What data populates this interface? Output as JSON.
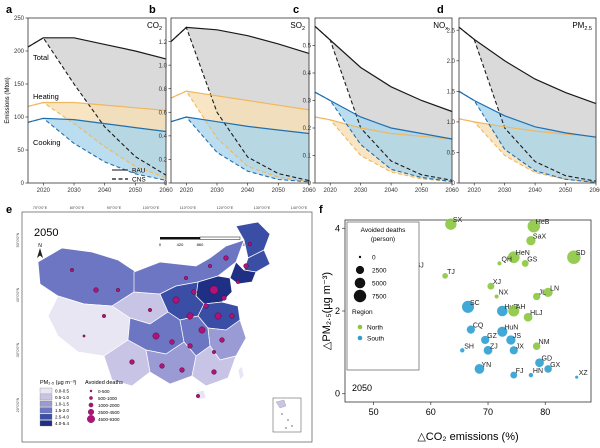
{
  "panels": [
    {
      "letter": "a",
      "species": "CO",
      "sub": "2",
      "ylabel": "Emissions (Mton)",
      "yticks": [
        "0",
        "50",
        "100",
        "150",
        "200",
        "250"
      ]
    },
    {
      "letter": "b",
      "species": "SO",
      "sub": "2",
      "ylabel": "",
      "yticks": [
        "0",
        "0.2",
        "0.4",
        "0.6",
        "0.8",
        "1.0",
        "1.2"
      ]
    },
    {
      "letter": "c",
      "species": "NO",
      "sub": "x",
      "ylabel": "",
      "yticks": [
        "0",
        "0.1",
        "0.2",
        "0.3",
        "0.4",
        "0.5"
      ]
    },
    {
      "letter": "d",
      "species": "PM",
      "sub": "2.5",
      "ylabel": "",
      "yticks": [
        "0",
        "0.5",
        "1.0",
        "1.5",
        "2.0",
        "2.5"
      ]
    }
  ],
  "xticks": [
    "2020",
    "2030",
    "2040",
    "2050",
    "2060"
  ],
  "panel_a_labels": {
    "total": "Total",
    "heating": "Heating",
    "cooking": "Cooking"
  },
  "legend_top": {
    "bau": "BAU",
    "cns": "CNS"
  },
  "colors": {
    "total_fill": "#d4d4d4",
    "heating_fill": "#f6dfb4",
    "cooking_fill": "#a9d4ec",
    "heating_line": "#f0b85e",
    "cooking_line": "#1f6fb0",
    "north": "#8cc63f",
    "south": "#2e9fd0"
  },
  "chart_data": [
    {
      "type": "area",
      "title": "CO2",
      "x": [
        2015,
        2020,
        2030,
        2040,
        2050,
        2060
      ],
      "ylim": [
        0,
        250
      ],
      "series": [
        {
          "name": "Total",
          "bau": [
            206,
            220,
            220,
            210,
            200,
            188
          ],
          "cns": [
            206,
            220,
            150,
            85,
            40,
            12
          ]
        },
        {
          "name": "Heating",
          "bau": [
            116,
            122,
            122,
            118,
            114,
            110
          ],
          "cns": [
            116,
            122,
            90,
            55,
            25,
            8
          ]
        },
        {
          "name": "Cooking",
          "bau": [
            92,
            98,
            96,
            90,
            84,
            78
          ],
          "cns": [
            92,
            98,
            60,
            32,
            14,
            4
          ]
        }
      ]
    },
    {
      "type": "area",
      "title": "SO2",
      "x": [
        2015,
        2020,
        2030,
        2040,
        2050,
        2060
      ],
      "ylim": [
        0,
        1.4
      ],
      "series": [
        {
          "name": "Total",
          "bau": [
            1.2,
            1.32,
            1.3,
            1.25,
            1.18,
            1.1
          ],
          "cns": [
            1.2,
            1.32,
            0.6,
            0.22,
            0.08,
            0.02
          ]
        },
        {
          "name": "Heating",
          "bau": [
            0.72,
            0.78,
            0.74,
            0.7,
            0.66,
            0.62
          ],
          "cns": [
            0.72,
            0.78,
            0.38,
            0.14,
            0.05,
            0.01
          ]
        },
        {
          "name": "Cooking",
          "bau": [
            0.52,
            0.56,
            0.52,
            0.48,
            0.45,
            0.42
          ],
          "cns": [
            0.52,
            0.56,
            0.26,
            0.1,
            0.03,
            0.01
          ]
        }
      ]
    },
    {
      "type": "area",
      "title": "NOx",
      "x": [
        2015,
        2020,
        2030,
        2040,
        2050,
        2060
      ],
      "ylim": [
        0,
        0.6
      ],
      "series": [
        {
          "name": "Total",
          "bau": [
            0.57,
            0.52,
            0.42,
            0.35,
            0.3,
            0.26
          ],
          "cns": [
            0.57,
            0.52,
            0.2,
            0.08,
            0.03,
            0.01
          ]
        },
        {
          "name": "Heating",
          "bau": [
            0.24,
            0.23,
            0.2,
            0.18,
            0.17,
            0.16
          ],
          "cns": [
            0.24,
            0.23,
            0.1,
            0.04,
            0.015,
            0.005
          ]
        },
        {
          "name": "Cooking",
          "bau": [
            0.33,
            0.3,
            0.24,
            0.2,
            0.18,
            0.16
          ],
          "cns": [
            0.33,
            0.3,
            0.14,
            0.05,
            0.02,
            0.005
          ]
        }
      ]
    },
    {
      "type": "area",
      "title": "PM2.5",
      "x": [
        2015,
        2020,
        2030,
        2040,
        2050,
        2060
      ],
      "ylim": [
        0,
        2.7
      ],
      "series": [
        {
          "name": "Total",
          "bau": [
            2.55,
            2.35,
            2.0,
            1.7,
            1.48,
            1.3
          ],
          "cns": [
            2.55,
            2.35,
            0.9,
            0.35,
            0.12,
            0.03
          ]
        },
        {
          "name": "Heating",
          "bau": [
            1.05,
            1.0,
            0.92,
            0.85,
            0.8,
            0.76
          ],
          "cns": [
            1.05,
            1.0,
            0.45,
            0.17,
            0.06,
            0.01
          ]
        },
        {
          "name": "Cooking",
          "bau": [
            1.5,
            1.35,
            1.1,
            0.92,
            0.82,
            0.75
          ],
          "cns": [
            1.5,
            1.35,
            0.55,
            0.2,
            0.06,
            0.01
          ]
        }
      ]
    },
    {
      "type": "scatter",
      "title": "f",
      "xlabel": "△CO₂ emissions (%)",
      "ylabel": "△PM₂.₅(µg m⁻³)",
      "xlim": [
        45,
        88
      ],
      "ylim": [
        -0.2,
        4.2
      ],
      "xticks": [
        50,
        60,
        70,
        80
      ],
      "yticks": [
        0,
        2,
        4
      ],
      "points": [
        {
          "label": "SX",
          "x": 63.5,
          "y": 4.1,
          "deaths": 6000,
          "region": "North"
        },
        {
          "label": "HeB",
          "x": 78.0,
          "y": 4.05,
          "deaths": 7500,
          "region": "North"
        },
        {
          "label": "SaX",
          "x": 77.5,
          "y": 3.7,
          "deaths": 3500,
          "region": "North"
        },
        {
          "label": "HeN",
          "x": 74.5,
          "y": 3.3,
          "deaths": 6500,
          "region": "North"
        },
        {
          "label": "SD",
          "x": 85.0,
          "y": 3.3,
          "deaths": 9000,
          "region": "North"
        },
        {
          "label": "GS",
          "x": 76.5,
          "y": 3.15,
          "deaths": 1500,
          "region": "North"
        },
        {
          "label": "QH",
          "x": 72.0,
          "y": 3.15,
          "deaths": 200,
          "region": "North"
        },
        {
          "label": "BJ",
          "x": 57.0,
          "y": 3.0,
          "deaths": 1500,
          "region": "North"
        },
        {
          "label": "TJ",
          "x": 62.5,
          "y": 2.85,
          "deaths": 800,
          "region": "North"
        },
        {
          "label": "XJ",
          "x": 70.5,
          "y": 2.6,
          "deaths": 1500,
          "region": "North"
        },
        {
          "label": "NX",
          "x": 71.5,
          "y": 2.35,
          "deaths": 200,
          "region": "North"
        },
        {
          "label": "LN",
          "x": 80.5,
          "y": 2.45,
          "deaths": 3500,
          "region": "North"
        },
        {
          "label": "JL",
          "x": 78.5,
          "y": 2.35,
          "deaths": 1800,
          "region": "North"
        },
        {
          "label": "SC",
          "x": 66.5,
          "y": 2.1,
          "deaths": 7000,
          "region": "South"
        },
        {
          "label": "HuB",
          "x": 72.5,
          "y": 2.0,
          "deaths": 5000,
          "region": "South"
        },
        {
          "label": "AH",
          "x": 74.5,
          "y": 2.0,
          "deaths": 5500,
          "region": "North"
        },
        {
          "label": "HLJ",
          "x": 77.0,
          "y": 1.85,
          "deaths": 3000,
          "region": "North"
        },
        {
          "label": "CQ",
          "x": 67.0,
          "y": 1.55,
          "deaths": 2500,
          "region": "South"
        },
        {
          "label": "HuN",
          "x": 72.5,
          "y": 1.5,
          "deaths": 4500,
          "region": "South"
        },
        {
          "label": "GZ",
          "x": 69.5,
          "y": 1.3,
          "deaths": 2500,
          "region": "South"
        },
        {
          "label": "JS",
          "x": 74.0,
          "y": 1.3,
          "deaths": 3500,
          "region": "South"
        },
        {
          "label": "NM",
          "x": 78.5,
          "y": 1.15,
          "deaths": 2000,
          "region": "North"
        },
        {
          "label": "SH",
          "x": 65.5,
          "y": 1.05,
          "deaths": 300,
          "region": "South"
        },
        {
          "label": "ZJ",
          "x": 70.0,
          "y": 1.05,
          "deaths": 3000,
          "region": "South"
        },
        {
          "label": "JX",
          "x": 74.5,
          "y": 1.05,
          "deaths": 2500,
          "region": "South"
        },
        {
          "label": "GD",
          "x": 79.0,
          "y": 0.75,
          "deaths": 3000,
          "region": "South"
        },
        {
          "label": "YN",
          "x": 68.5,
          "y": 0.6,
          "deaths": 4000,
          "region": "South"
        },
        {
          "label": "GX",
          "x": 80.5,
          "y": 0.6,
          "deaths": 2000,
          "region": "South"
        },
        {
          "label": "FJ",
          "x": 74.5,
          "y": 0.45,
          "deaths": 1500,
          "region": "South"
        },
        {
          "label": "HN",
          "x": 77.5,
          "y": 0.45,
          "deaths": 300,
          "region": "South"
        },
        {
          "label": "XZ",
          "x": 85.5,
          "y": 0.4,
          "deaths": 50,
          "region": "South"
        }
      ]
    }
  ],
  "panel_f": {
    "letter": "f",
    "year": "2050",
    "legend_deaths_title": "Avoided deaths",
    "legend_deaths_unit": "(person)",
    "deaths_levels": [
      0,
      2500,
      5000,
      7500
    ],
    "region_title": "Region",
    "regions": [
      "North",
      "South"
    ]
  },
  "panel_e": {
    "letter": "e",
    "year": "2050",
    "top_lon_ticks": [
      "70°0'0\"E",
      "80°0'0\"E",
      "90°0'0\"E",
      "100°0'0\"E",
      "110°0'0\"E",
      "120°0'0\"E",
      "130°0'0\"E",
      "140°0'0\"E"
    ],
    "lat_ticks": [
      "50°0'0\"N",
      "40°0'0\"N",
      "30°0'0\"N",
      "20°0'0\"N"
    ],
    "scale_ticks": [
      "0",
      "420",
      "860",
      "1,720"
    ],
    "scale_unit": "km",
    "north": "N",
    "pm_legend_title": "PM₂.₅ (µg m⁻³)",
    "pm_legend": [
      {
        "label": "0.0-0.5",
        "color": "#e9e6f4"
      },
      {
        "label": "0.5-1.0",
        "color": "#c8c4e6"
      },
      {
        "label": "1.0-1.5",
        "color": "#9a9ad4"
      },
      {
        "label": "1.5-2.0",
        "color": "#6c76c2"
      },
      {
        "label": "2.5-4.0",
        "color": "#3b4ea6"
      },
      {
        "label": "4.0-5.4",
        "color": "#1f2f84"
      }
    ],
    "deaths_legend_title": "Avoided deaths",
    "deaths_legend": [
      "0-500",
      "500-1000",
      "1000-2000",
      "2500-4500",
      "4500-9300"
    ],
    "dot_color": "#b0127a"
  }
}
